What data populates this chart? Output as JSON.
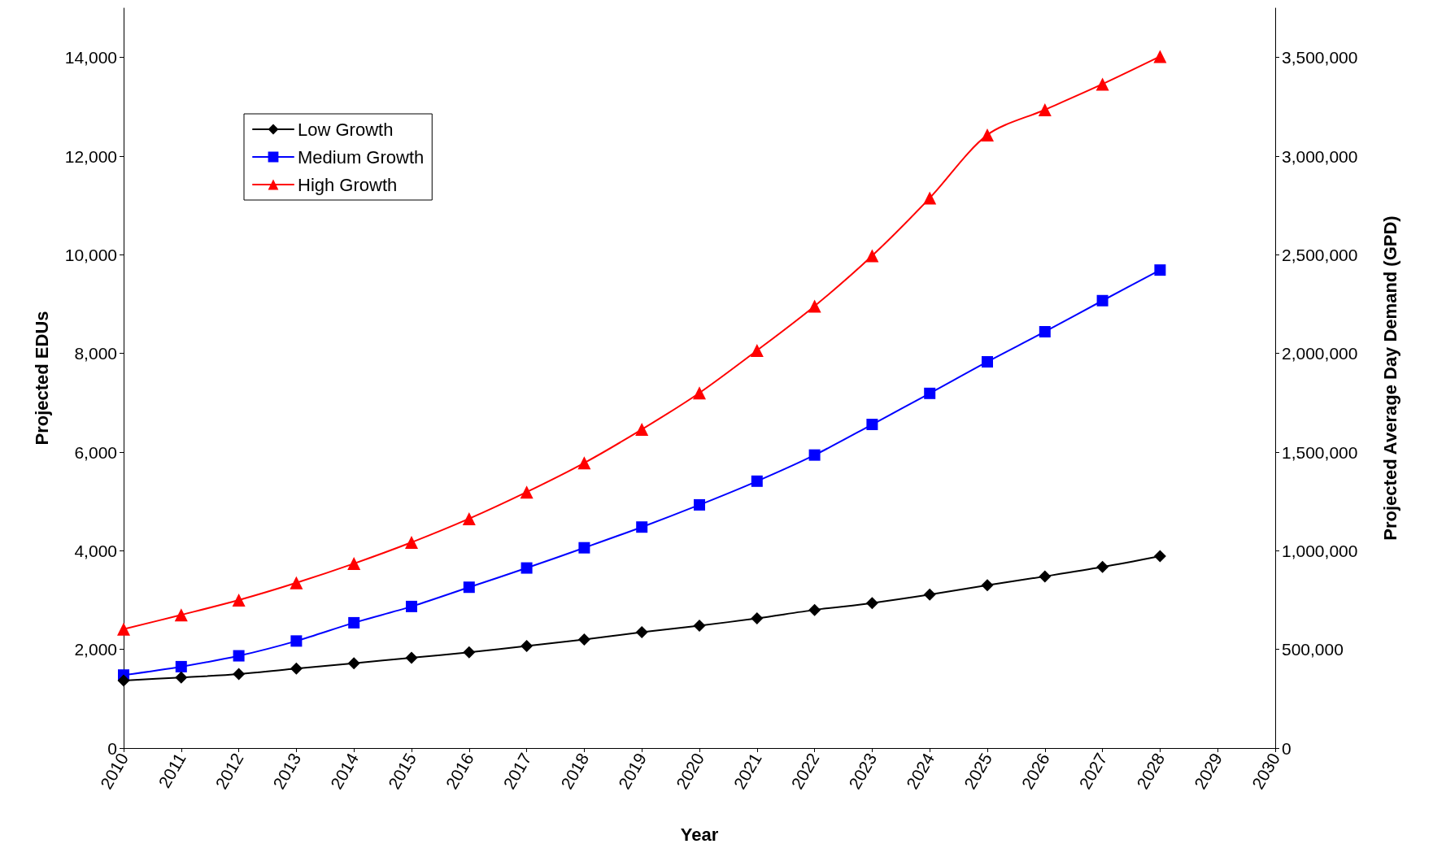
{
  "chart_data": {
    "type": "line",
    "xlabel": "Year",
    "ylabel": "Projected EDUs",
    "y2label": "Projected Average Day Demand (GPD)",
    "x": [
      2010,
      2011,
      2012,
      2013,
      2014,
      2015,
      2016,
      2017,
      2018,
      2019,
      2020,
      2021,
      2022,
      2023,
      2024,
      2025,
      2026,
      2027,
      2028
    ],
    "series": [
      {
        "name": "Low Growth",
        "color": "#000000",
        "marker": "diamond",
        "values": [
          1370,
          1430,
          1500,
          1610,
          1720,
          1830,
          1940,
          2070,
          2200,
          2350,
          2480,
          2630,
          2800,
          2940,
          3110,
          3300,
          3480,
          3670,
          3890
        ]
      },
      {
        "name": "Medium Growth",
        "color": "#0000ff",
        "marker": "square",
        "values": [
          1480,
          1650,
          1870,
          2170,
          2540,
          2870,
          3260,
          3650,
          4060,
          4480,
          4930,
          5410,
          5940,
          6560,
          7190,
          7830,
          8440,
          9070,
          9690
        ]
      },
      {
        "name": "High Growth",
        "color": "#ff0000",
        "marker": "triangle",
        "values": [
          2410,
          2700,
          3000,
          3350,
          3740,
          4170,
          4650,
          5190,
          5780,
          6460,
          7200,
          8060,
          8960,
          9980,
          11150,
          12430,
          12940,
          13460,
          14020
        ]
      }
    ],
    "xlim": [
      2010,
      2030
    ],
    "xticks": [
      2010,
      2011,
      2012,
      2013,
      2014,
      2015,
      2016,
      2017,
      2018,
      2019,
      2020,
      2021,
      2022,
      2023,
      2024,
      2025,
      2026,
      2027,
      2028,
      2029,
      2030
    ],
    "ylim": [
      0,
      15000
    ],
    "yticks": [
      0,
      {
        "value": 2000,
        "label": "2,000"
      },
      {
        "value": 4000,
        "label": "4,000"
      },
      {
        "value": 6000,
        "label": "6,000"
      },
      {
        "value": 8000,
        "label": "8,000"
      },
      {
        "value": 10000,
        "label": "10,000"
      },
      {
        "value": 12000,
        "label": "12,000"
      },
      {
        "value": 14000,
        "label": "14,000"
      }
    ],
    "y2lim": [
      0,
      3750000
    ],
    "y2ticks": [
      0,
      {
        "value": 500000,
        "label": "500,000"
      },
      {
        "value": 1000000,
        "label": "1,000,000"
      },
      {
        "value": 1500000,
        "label": "1,500,000"
      },
      {
        "value": 2000000,
        "label": "2,000,000"
      },
      {
        "value": 2500000,
        "label": "2,500,000"
      },
      {
        "value": 3000000,
        "label": "3,000,000"
      },
      {
        "value": 3500000,
        "label": "3,500,000"
      }
    ],
    "grid": false,
    "legend": "top left",
    "line_style": "solid"
  }
}
